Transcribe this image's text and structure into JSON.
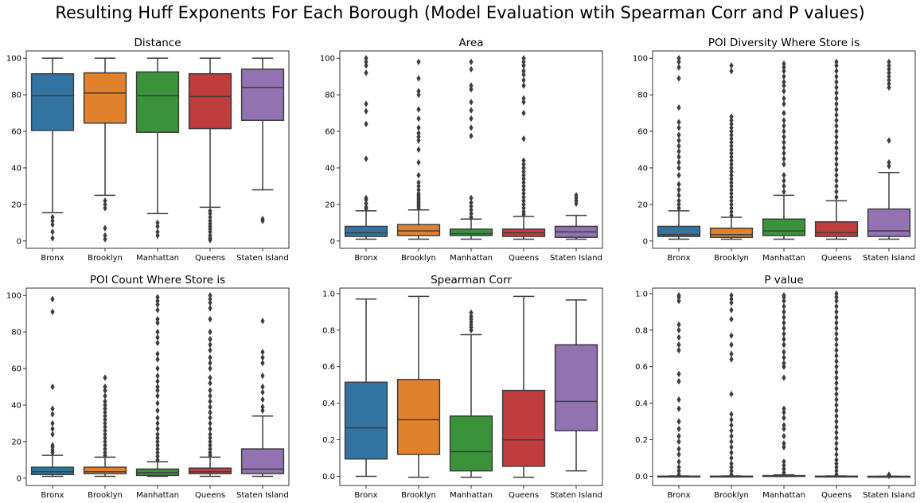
{
  "suptitle": "Resulting Huff Exponents For Each Borough (Model Evaluation wtih Spearman Corr and P values)",
  "colors": {
    "Bronx": "#3274a1",
    "Brooklyn": "#e1812c",
    "Manhattan": "#3a923a",
    "Queens": "#c03d3e",
    "Staten Island": "#9372b2",
    "line": "#3d3d3d"
  },
  "chart_data": [
    {
      "type": "box",
      "title": "Distance",
      "categories": [
        "Bronx",
        "Brooklyn",
        "Manhattan",
        "Queens",
        "Staten Island"
      ],
      "ylim": [
        -4,
        104
      ],
      "yticks": [
        0,
        20,
        40,
        60,
        80,
        100
      ],
      "tick_labels": [
        "0",
        "20",
        "40",
        "60",
        "80",
        "100"
      ],
      "boxes": [
        {
          "whislo": 15.5,
          "q1": 60.5,
          "med": 79.5,
          "q3": 91.5,
          "whishi": 100,
          "fliers": [
            1.5,
            5,
            9,
            11,
            13
          ]
        },
        {
          "whislo": 25,
          "q1": 64.5,
          "med": 81,
          "q3": 92,
          "whishi": 100,
          "fliers": [
            1,
            3,
            7,
            18,
            20,
            22
          ]
        },
        {
          "whislo": 15,
          "q1": 59.5,
          "med": 79.5,
          "q3": 92.5,
          "whishi": 100,
          "fliers": [
            3,
            5,
            8,
            10
          ]
        },
        {
          "whislo": 18.5,
          "q1": 61.5,
          "med": 79,
          "q3": 91.5,
          "whishi": 100,
          "fliers": [
            0.5,
            1.5,
            3,
            5,
            6.5,
            8,
            9.5,
            11,
            13,
            15,
            16.5
          ]
        },
        {
          "whislo": 28,
          "q1": 66,
          "med": 84,
          "q3": 94,
          "whishi": 100,
          "fliers": [
            11,
            12
          ]
        }
      ]
    },
    {
      "type": "box",
      "title": "Area",
      "categories": [
        "Bronx",
        "Brooklyn",
        "Manhattan",
        "Queens",
        "Staten Island"
      ],
      "ylim": [
        -4,
        104
      ],
      "yticks": [
        0,
        20,
        40,
        60,
        80,
        100
      ],
      "tick_labels": [
        "0",
        "20",
        "40",
        "60",
        "80",
        "100"
      ],
      "boxes": [
        {
          "whislo": 1,
          "q1": 2.5,
          "med": 4.5,
          "q3": 8,
          "whishi": 16.5,
          "fliers": [
            17.5,
            18.5,
            20.5,
            22.5,
            23.5,
            45,
            64,
            71,
            75,
            92,
            96,
            98,
            100
          ]
        },
        {
          "whislo": 1,
          "q1": 3,
          "med": 5.5,
          "q3": 9,
          "whishi": 17,
          "fliers": [
            18,
            19,
            20,
            21,
            22,
            23,
            24,
            25,
            26,
            28,
            30,
            32,
            36,
            43,
            50,
            55,
            57,
            59,
            62,
            67,
            72,
            80,
            82,
            89,
            98
          ]
        },
        {
          "whislo": 1,
          "q1": 3,
          "med": 4,
          "q3": 6.5,
          "whishi": 12,
          "fliers": [
            13,
            15,
            17,
            19,
            21,
            23.5,
            57.5,
            62,
            67,
            71.5,
            76,
            83,
            85,
            94,
            98
          ]
        },
        {
          "whislo": 1,
          "q1": 2.5,
          "med": 4.5,
          "q3": 6.5,
          "whishi": 13.5,
          "fliers": [
            14.5,
            16,
            18,
            20,
            22,
            24,
            26,
            28,
            30,
            32,
            34,
            36,
            38,
            40,
            42,
            44,
            56,
            70,
            76,
            78,
            85,
            88,
            91,
            93,
            96,
            98,
            100
          ]
        },
        {
          "whislo": 1,
          "q1": 2,
          "med": 5,
          "q3": 8,
          "whishi": 14,
          "fliers": [
            20.5,
            22,
            23.5,
            25
          ]
        }
      ]
    },
    {
      "type": "box",
      "title": "POI Diversity Where Store is",
      "categories": [
        "Bronx",
        "Brooklyn",
        "Manhattan",
        "Queens",
        "Staten Island"
      ],
      "ylim": [
        -4,
        104
      ],
      "yticks": [
        0,
        20,
        40,
        60,
        80,
        100
      ],
      "tick_labels": [
        "0",
        "20",
        "40",
        "60",
        "80",
        "100"
      ],
      "boxes": [
        {
          "whislo": 1,
          "q1": 2.5,
          "med": 3.5,
          "q3": 8,
          "whishi": 16.5,
          "fliers": [
            18,
            20,
            22,
            25,
            28,
            31,
            36,
            40,
            43,
            46,
            49,
            52,
            55,
            58,
            62,
            65,
            73,
            89,
            95,
            98,
            100
          ]
        },
        {
          "whislo": 1,
          "q1": 2,
          "med": 3.5,
          "q3": 7,
          "whishi": 13,
          "fliers": [
            14,
            16,
            18,
            20,
            22,
            24,
            26,
            28,
            30,
            32,
            34,
            36,
            38,
            40,
            42,
            44,
            46,
            48,
            50,
            52,
            54,
            56,
            58,
            60,
            62,
            64,
            66,
            68,
            93,
            96
          ]
        },
        {
          "whislo": 1,
          "q1": 3,
          "med": 5.5,
          "q3": 12,
          "whishi": 25,
          "fliers": [
            27,
            30,
            33,
            36,
            42,
            45,
            48,
            51,
            54,
            57,
            60,
            63,
            66,
            70,
            75,
            78,
            82,
            85,
            87,
            90,
            93,
            95,
            97
          ]
        },
        {
          "whislo": 1,
          "q1": 2.5,
          "med": 4.5,
          "q3": 10.5,
          "whishi": 22,
          "fliers": [
            24,
            27,
            30,
            33,
            36,
            39,
            42,
            45,
            48,
            51,
            54,
            57,
            60,
            63,
            66,
            69,
            72,
            75,
            78,
            81,
            84,
            87,
            90,
            93,
            96,
            98
          ]
        },
        {
          "whislo": 1,
          "q1": 2.5,
          "med": 5.5,
          "q3": 17.5,
          "whishi": 37.5,
          "fliers": [
            41,
            43,
            55,
            84,
            86,
            88,
            90,
            92,
            94,
            96,
            98
          ]
        }
      ]
    },
    {
      "type": "box",
      "title": "POI Count Where Store is",
      "categories": [
        "Bronx",
        "Brooklyn",
        "Manhattan",
        "Queens",
        "Staten Island"
      ],
      "ylim": [
        -4,
        104
      ],
      "yticks": [
        0,
        20,
        40,
        60,
        80,
        100
      ],
      "tick_labels": [
        "0",
        "20",
        "40",
        "60",
        "80",
        "100"
      ],
      "boxes": [
        {
          "whislo": 1,
          "q1": 2,
          "med": 3.5,
          "q3": 6,
          "whishi": 12.5,
          "fliers": [
            14,
            15.5,
            17,
            18,
            24,
            27,
            30,
            35,
            38,
            50,
            91,
            98
          ]
        },
        {
          "whislo": 1,
          "q1": 2.5,
          "med": 3.5,
          "q3": 6,
          "whishi": 11.5,
          "fliers": [
            12.5,
            14,
            16,
            18,
            20,
            22,
            24,
            26,
            28,
            30,
            32,
            34,
            36,
            38,
            40,
            42,
            45,
            48,
            50,
            55
          ]
        },
        {
          "whislo": 1,
          "q1": 1.5,
          "med": 3,
          "q3": 5,
          "whishi": 9,
          "fliers": [
            10,
            12,
            14,
            16,
            18,
            20,
            22,
            24,
            27,
            30,
            33,
            37,
            41,
            45,
            48,
            50,
            53,
            56,
            60,
            65,
            68,
            74,
            77,
            80,
            85,
            87,
            92,
            95,
            97,
            99
          ]
        },
        {
          "whislo": 1,
          "q1": 2.5,
          "med": 3.5,
          "q3": 5.5,
          "whishi": 11.5,
          "fliers": [
            12.5,
            14,
            16,
            18,
            20,
            22,
            24,
            27,
            30,
            33,
            36,
            39,
            42,
            45,
            48,
            52,
            55,
            60,
            63,
            66,
            70,
            73,
            76,
            80,
            87,
            93,
            96,
            98,
            100
          ]
        },
        {
          "whislo": 1,
          "q1": 2.5,
          "med": 5,
          "q3": 16,
          "whishi": 34,
          "fliers": [
            37,
            39,
            43,
            47,
            50,
            56,
            63,
            66,
            69,
            86
          ]
        }
      ]
    },
    {
      "type": "box",
      "title": "Spearman Corr",
      "categories": [
        "Bronx",
        "Brooklyn",
        "Manhattan",
        "Queens",
        "Staten Island"
      ],
      "ylim": [
        -0.05,
        1.03
      ],
      "yticks": [
        0,
        0.2,
        0.4,
        0.6,
        0.8,
        1.0
      ],
      "tick_labels": [
        "0.0",
        "0.2",
        "0.4",
        "0.6",
        "0.8",
        "1.0"
      ],
      "boxes": [
        {
          "whislo": 0.0,
          "q1": 0.095,
          "med": 0.265,
          "q3": 0.515,
          "whishi": 0.97,
          "fliers": []
        },
        {
          "whislo": -0.005,
          "q1": 0.12,
          "med": 0.31,
          "q3": 0.53,
          "whishi": 0.985,
          "fliers": []
        },
        {
          "whislo": -0.005,
          "q1": 0.03,
          "med": 0.135,
          "q3": 0.33,
          "whishi": 0.775,
          "fliers": [
            0.8,
            0.815,
            0.83,
            0.845,
            0.86,
            0.875,
            0.895
          ]
        },
        {
          "whislo": -0.005,
          "q1": 0.055,
          "med": 0.2,
          "q3": 0.47,
          "whishi": 0.985,
          "fliers": []
        },
        {
          "whislo": 0.03,
          "q1": 0.25,
          "med": 0.41,
          "q3": 0.72,
          "whishi": 0.965,
          "fliers": []
        }
      ]
    },
    {
      "type": "box",
      "title": "P value",
      "categories": [
        "Bronx",
        "Brooklyn",
        "Manhattan",
        "Queens",
        "Staten Island"
      ],
      "ylim": [
        -0.05,
        1.03
      ],
      "yticks": [
        0,
        0.2,
        0.4,
        0.6,
        0.8,
        1.0
      ],
      "tick_labels": [
        "0.0",
        "0.2",
        "0.4",
        "0.6",
        "0.8",
        "1.0"
      ],
      "boxes": [
        {
          "whislo": 0,
          "q1": 0,
          "med": 0,
          "q3": 0.001,
          "whishi": 0.002,
          "fliers": [
            0.01,
            0.03,
            0.05,
            0.08,
            0.12,
            0.15,
            0.19,
            0.22,
            0.26,
            0.3,
            0.37,
            0.42,
            0.52,
            0.56,
            0.69,
            0.72,
            0.76,
            0.8,
            0.83,
            0.96,
            0.98,
            0.99
          ]
        },
        {
          "whislo": 0,
          "q1": 0,
          "med": 0,
          "q3": 0.001,
          "whishi": 0.002,
          "fliers": [
            0.01,
            0.03,
            0.05,
            0.07,
            0.1,
            0.13,
            0.16,
            0.19,
            0.22,
            0.25,
            0.28,
            0.31,
            0.34,
            0.45,
            0.64,
            0.67,
            0.72,
            0.77,
            0.86,
            0.91,
            0.95,
            0.97,
            0.99
          ]
        },
        {
          "whislo": 0,
          "q1": 0,
          "med": 0.002,
          "q3": 0.004,
          "whishi": 0.008,
          "fliers": [
            0.02,
            0.04,
            0.06,
            0.08,
            0.16,
            0.18,
            0.22,
            0.26,
            0.28,
            0.32,
            0.35,
            0.37,
            0.54,
            0.6,
            0.62,
            0.65,
            0.68,
            0.72,
            0.75,
            0.78,
            0.81,
            0.84,
            0.87,
            0.9,
            0.93,
            0.96,
            0.98,
            0.99
          ]
        },
        {
          "whislo": 0,
          "q1": 0,
          "med": 0,
          "q3": 0.001,
          "whishi": 0.002,
          "fliers": [
            0.01,
            0.03,
            0.05,
            0.07,
            0.09,
            0.12,
            0.15,
            0.18,
            0.21,
            0.24,
            0.27,
            0.3,
            0.33,
            0.36,
            0.39,
            0.42,
            0.45,
            0.48,
            0.51,
            0.54,
            0.57,
            0.6,
            0.63,
            0.66,
            0.69,
            0.72,
            0.75,
            0.78,
            0.81,
            0.84,
            0.87,
            0.9,
            0.93,
            0.96,
            0.98,
            1.0
          ]
        },
        {
          "whislo": 0,
          "q1": 0,
          "med": 0,
          "q3": 0,
          "whishi": 0,
          "fliers": [
            0.003,
            0.006,
            0.009
          ]
        }
      ]
    }
  ]
}
